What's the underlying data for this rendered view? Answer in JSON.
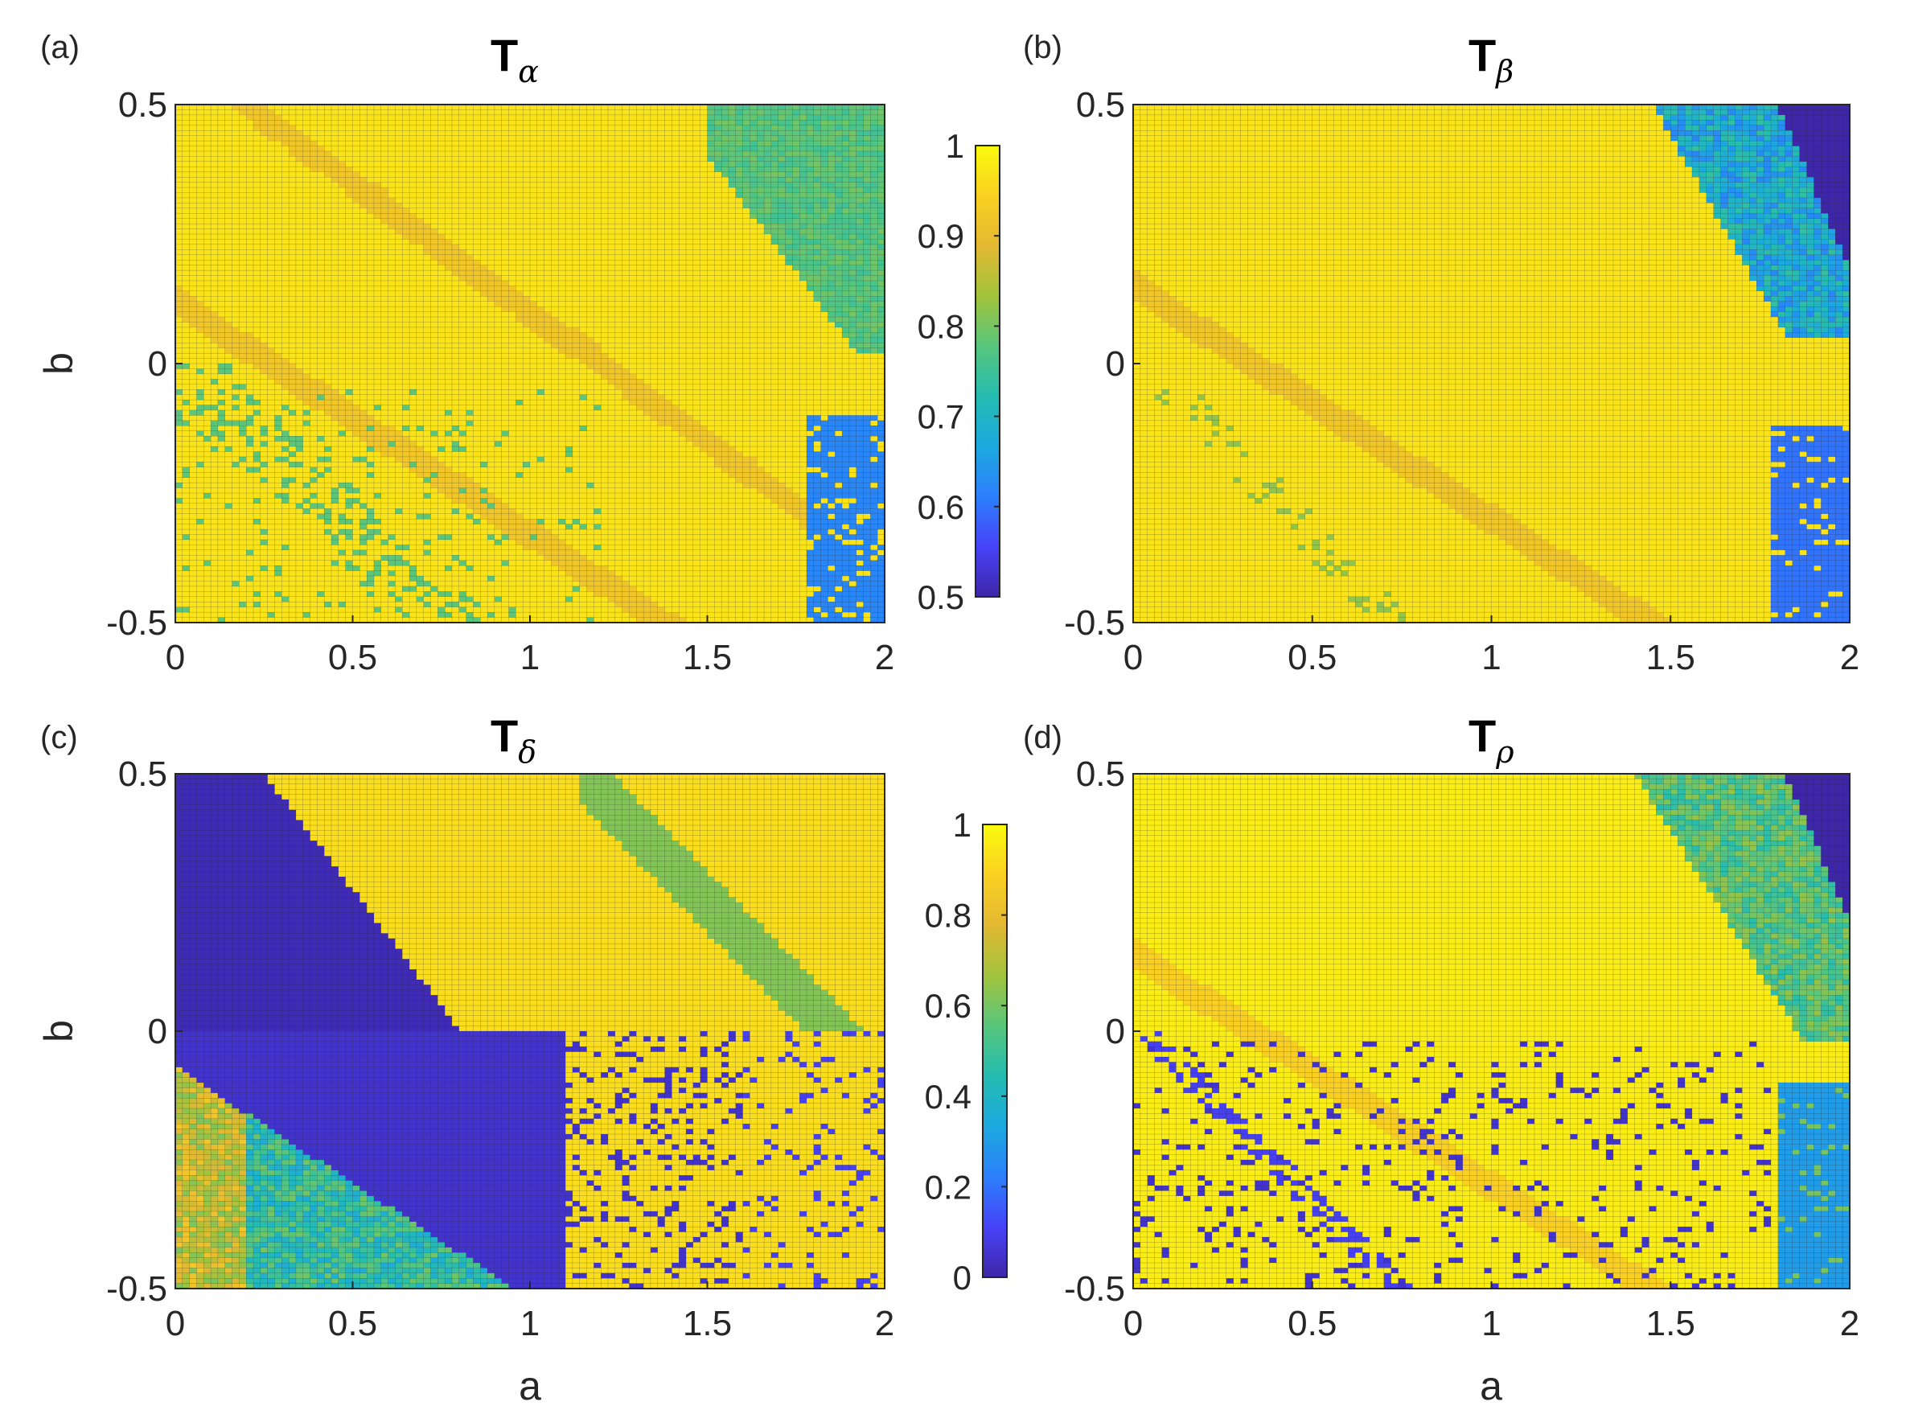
{
  "figure": {
    "background": "#ffffff"
  },
  "colormap": {
    "name": "parula",
    "stops": [
      "#3e26a8",
      "#4743f8",
      "#2c7ffc",
      "#1ca9df",
      "#24bcb1",
      "#58c67c",
      "#a2c33c",
      "#e3b832",
      "#fbd122",
      "#f9fb0e"
    ]
  },
  "chart_data": [
    {
      "id": "a",
      "type": "heatmap",
      "panel_letter": "(a)",
      "title": "T",
      "title_subscript": "α",
      "xlabel": "",
      "ylabel": "b",
      "xlim": [
        0,
        2
      ],
      "ylim": [
        -0.5,
        0.5
      ],
      "xticks": [
        "0",
        "0.5",
        "1",
        "1.5",
        "2"
      ],
      "yticks": [
        "-0.5",
        "0",
        "0.5"
      ],
      "grid_cells": [
        100,
        100
      ],
      "colorbar": {
        "range": [
          0.5,
          1
        ],
        "ticks": [
          "1",
          "0.9",
          "0.8",
          "0.7",
          "0.6",
          "0.5"
        ]
      },
      "regions": [
        {
          "description": "dominant background",
          "value": 0.97
        },
        {
          "description": "upper-right wedge a>1.5, b>0",
          "value": 0.75
        },
        {
          "description": "lower-right block a>1.78, b<-0.1",
          "value": 0.62
        },
        {
          "description": "scattered points along diagonal lower-left",
          "value": 0.78
        }
      ]
    },
    {
      "id": "b",
      "type": "heatmap",
      "panel_letter": "(b)",
      "title": "T",
      "title_subscript": "β",
      "xlabel": "",
      "ylabel": "",
      "xlim": [
        0,
        2
      ],
      "ylim": [
        -0.5,
        0.5
      ],
      "xticks": [
        "0",
        "0.5",
        "1",
        "1.5",
        "2"
      ],
      "yticks": [
        "-0.5",
        "0",
        "0.5"
      ],
      "grid_cells": [
        100,
        100
      ],
      "colorbar": null,
      "regions": [
        {
          "description": "dominant background",
          "value": 0.97
        },
        {
          "description": "upper-right wedge",
          "value": 0.62
        },
        {
          "description": "top-right corner",
          "value": 0.5
        },
        {
          "description": "lower-right block a>1.78",
          "value": 0.6
        }
      ]
    },
    {
      "id": "c",
      "type": "heatmap",
      "panel_letter": "(c)",
      "title": "T",
      "title_subscript": "δ",
      "xlabel": "a",
      "ylabel": "b",
      "xlim": [
        0,
        2
      ],
      "ylim": [
        -0.5,
        0.5
      ],
      "xticks": [
        "0",
        "0.5",
        "1",
        "1.5",
        "2"
      ],
      "yticks": [
        "-0.5",
        "0",
        "0.5"
      ],
      "grid_cells": [
        100,
        100
      ],
      "colorbar": {
        "range": [
          0,
          1
        ],
        "ticks": [
          "1",
          "0.8",
          "0.6",
          "0.4",
          "0.2",
          "0"
        ]
      },
      "regions": [
        {
          "description": "upper-left triangle",
          "value": 0.02
        },
        {
          "description": "lower-left band",
          "value": 0.45
        },
        {
          "description": "dark diagonal strip",
          "value": 0.05
        },
        {
          "description": "upper-right area",
          "value": 0.9
        },
        {
          "description": "green diagonal stripe",
          "value": 0.62
        }
      ]
    },
    {
      "id": "d",
      "type": "heatmap",
      "panel_letter": "(d)",
      "title": "T",
      "title_subscript": "ρ",
      "xlabel": "a",
      "ylabel": "",
      "xlim": [
        0,
        2
      ],
      "ylim": [
        -0.5,
        0.5
      ],
      "xticks": [
        "0",
        "0.5",
        "1",
        "1.5",
        "2"
      ],
      "yticks": [
        "-0.5",
        "0",
        "0.5"
      ],
      "grid_cells": [
        100,
        100
      ],
      "colorbar": null,
      "regions": [
        {
          "description": "dominant background",
          "value": 0.96
        },
        {
          "description": "upper-right wedge",
          "value": 0.5
        },
        {
          "description": "top-right corner",
          "value": 0.0
        },
        {
          "description": "lower-right block",
          "value": 0.3
        },
        {
          "description": "scattered dark points b<0",
          "value": 0.05
        }
      ]
    }
  ]
}
